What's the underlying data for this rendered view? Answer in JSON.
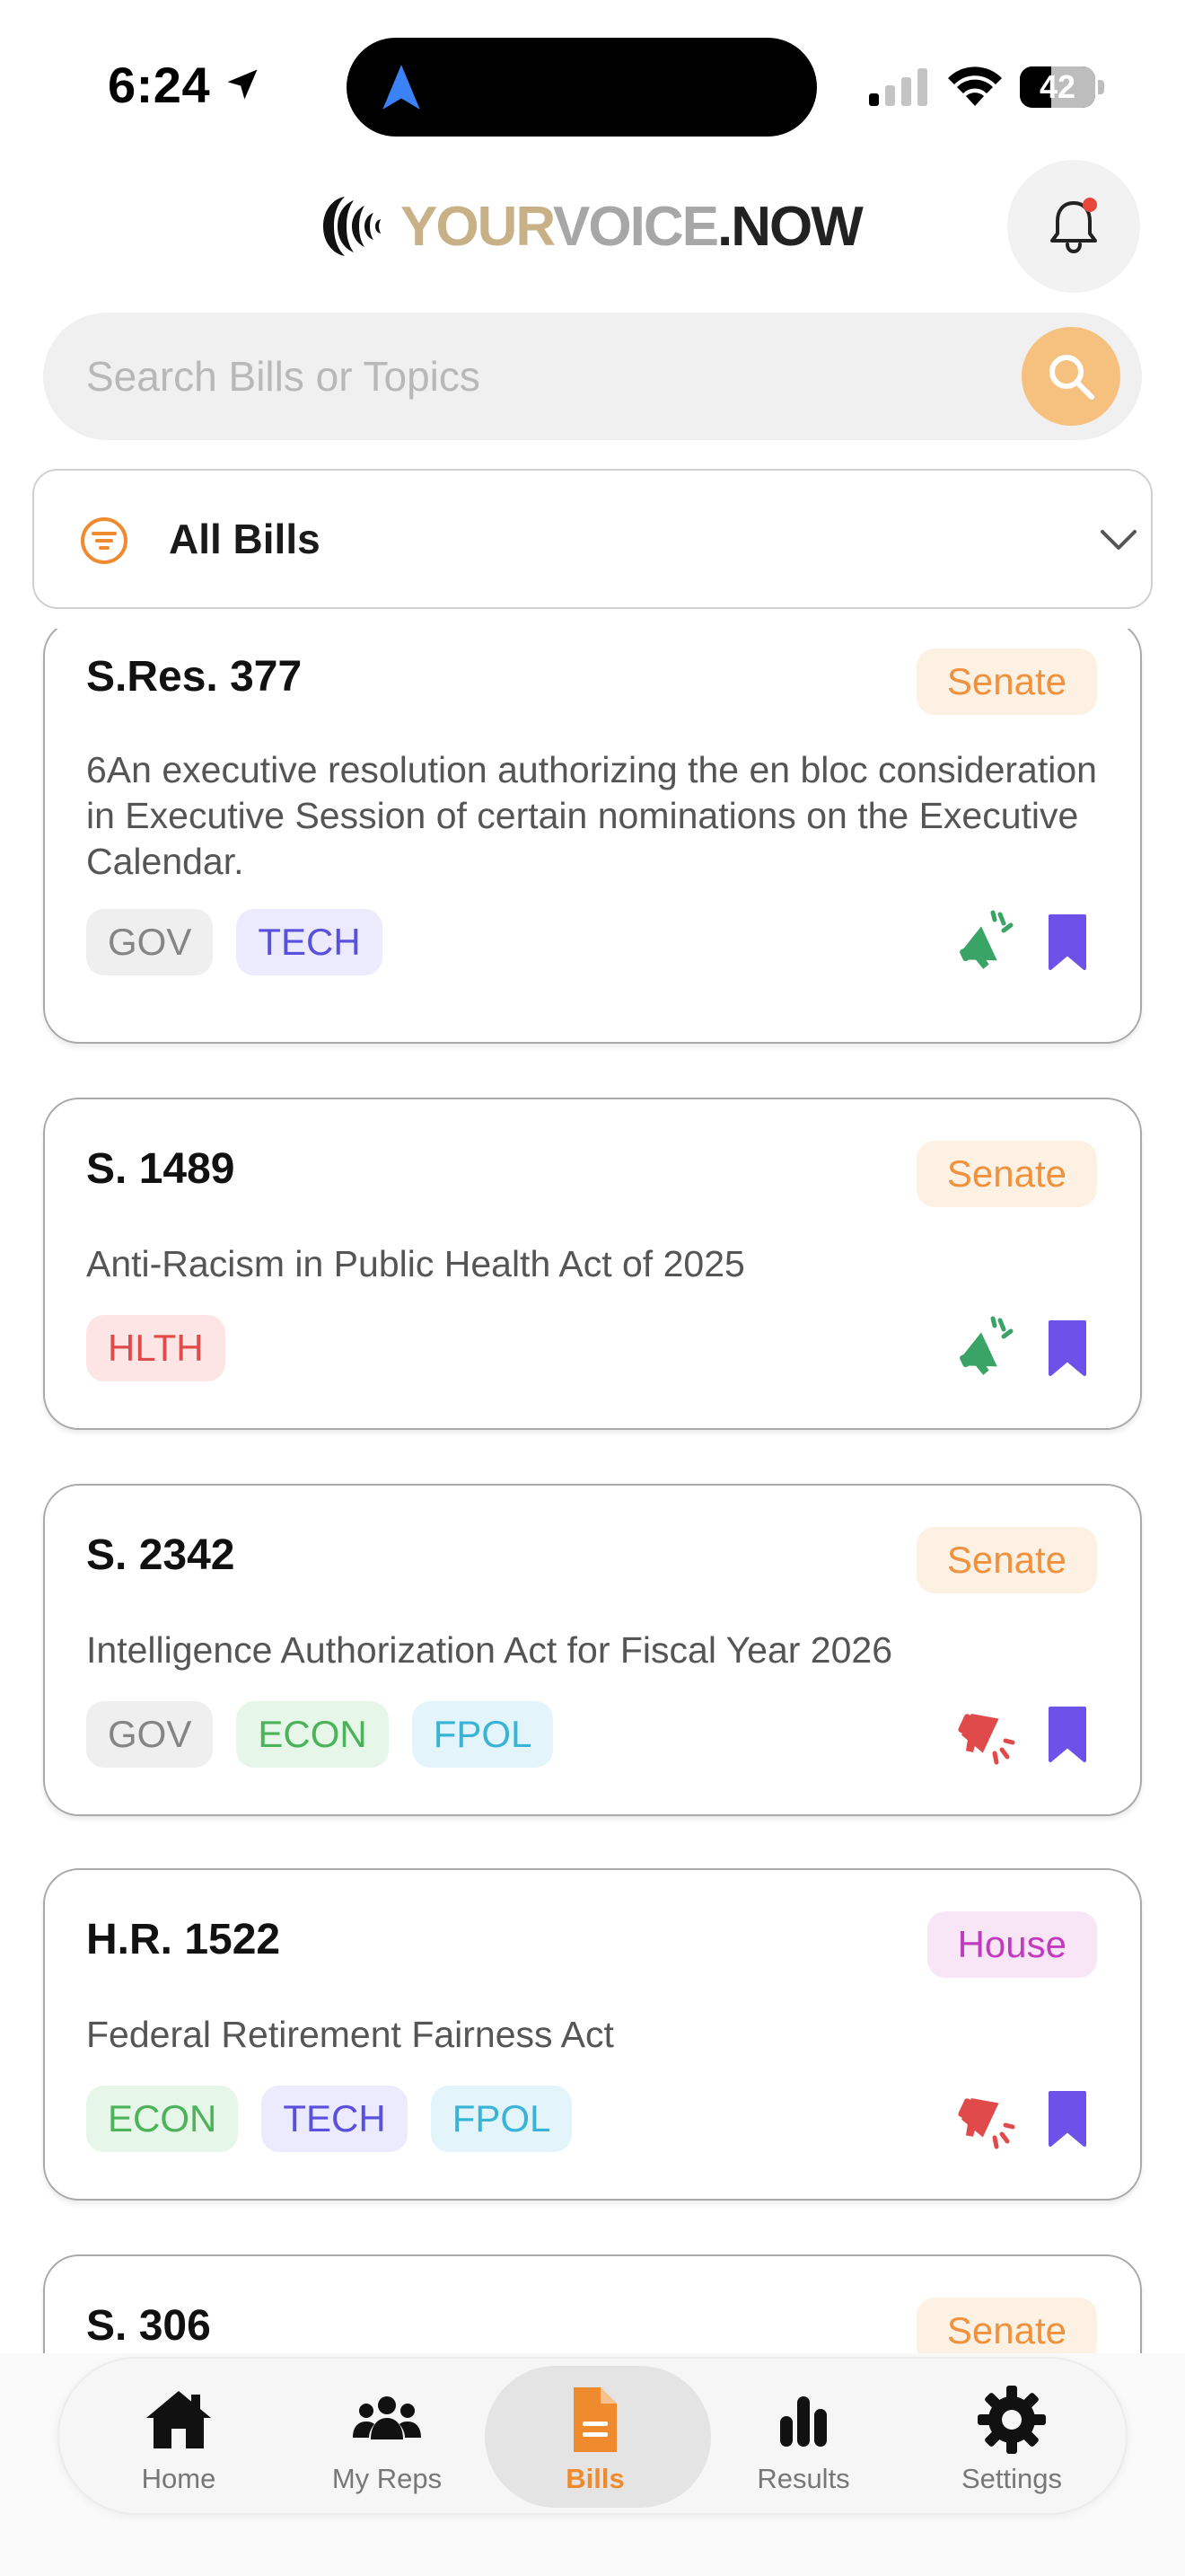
{
  "status_bar": {
    "time": "6:24",
    "battery": "42",
    "battery_level": 0.42
  },
  "header": {
    "brand_your": "YOUR",
    "brand_voice": "VOICE",
    "brand_dot": ".",
    "brand_now": "NOW",
    "notification_dot_color": "#e8463c"
  },
  "search": {
    "placeholder": "Search Bills or Topics",
    "accent_color": "#f6c07f"
  },
  "filter": {
    "selected": "All Bills"
  },
  "bills": [
    {
      "id": "S.Res. 377",
      "chamber": "Senate",
      "description": "6An executive resolution authorizing the en bloc consideration in Executive Session of certain nominations on the Executive Calendar.",
      "tags": [
        "GOV",
        "TECH"
      ],
      "vote_icon": "megaphone-support-icon",
      "save_icon": "bookmark-icon"
    },
    {
      "id": "S. 1489",
      "chamber": "Senate",
      "description": "Anti-Racism in Public Health Act of 2025",
      "tags": [
        "HLTH"
      ],
      "vote_icon": "megaphone-support-icon",
      "save_icon": "bookmark-icon"
    },
    {
      "id": "S. 2342",
      "chamber": "Senate",
      "description": "Intelligence Authorization Act for Fiscal Year 2026",
      "tags": [
        "GOV",
        "ECON",
        "FPOL"
      ],
      "vote_icon": "megaphone-oppose-icon",
      "save_icon": "bookmark-icon"
    },
    {
      "id": "H.R. 1522",
      "chamber": "House",
      "description": "Federal Retirement Fairness Act",
      "tags": [
        "ECON",
        "TECH",
        "FPOL"
      ],
      "vote_icon": "megaphone-oppose-icon",
      "save_icon": "bookmark-icon"
    },
    {
      "id": "S. 306",
      "chamber": "Senate"
    }
  ],
  "colors": {
    "support": "#3aa366",
    "oppose": "#e04a4a",
    "bookmark": "#6c52e8",
    "active_tab": "#ef8a2f"
  },
  "tabbar": {
    "tabs": [
      {
        "label": "Home",
        "icon": "home-icon"
      },
      {
        "label": "My Reps",
        "icon": "people-icon"
      },
      {
        "label": "Bills",
        "icon": "document-icon",
        "active": true
      },
      {
        "label": "Results",
        "icon": "bar-chart-icon"
      },
      {
        "label": "Settings",
        "icon": "gear-icon"
      }
    ]
  }
}
